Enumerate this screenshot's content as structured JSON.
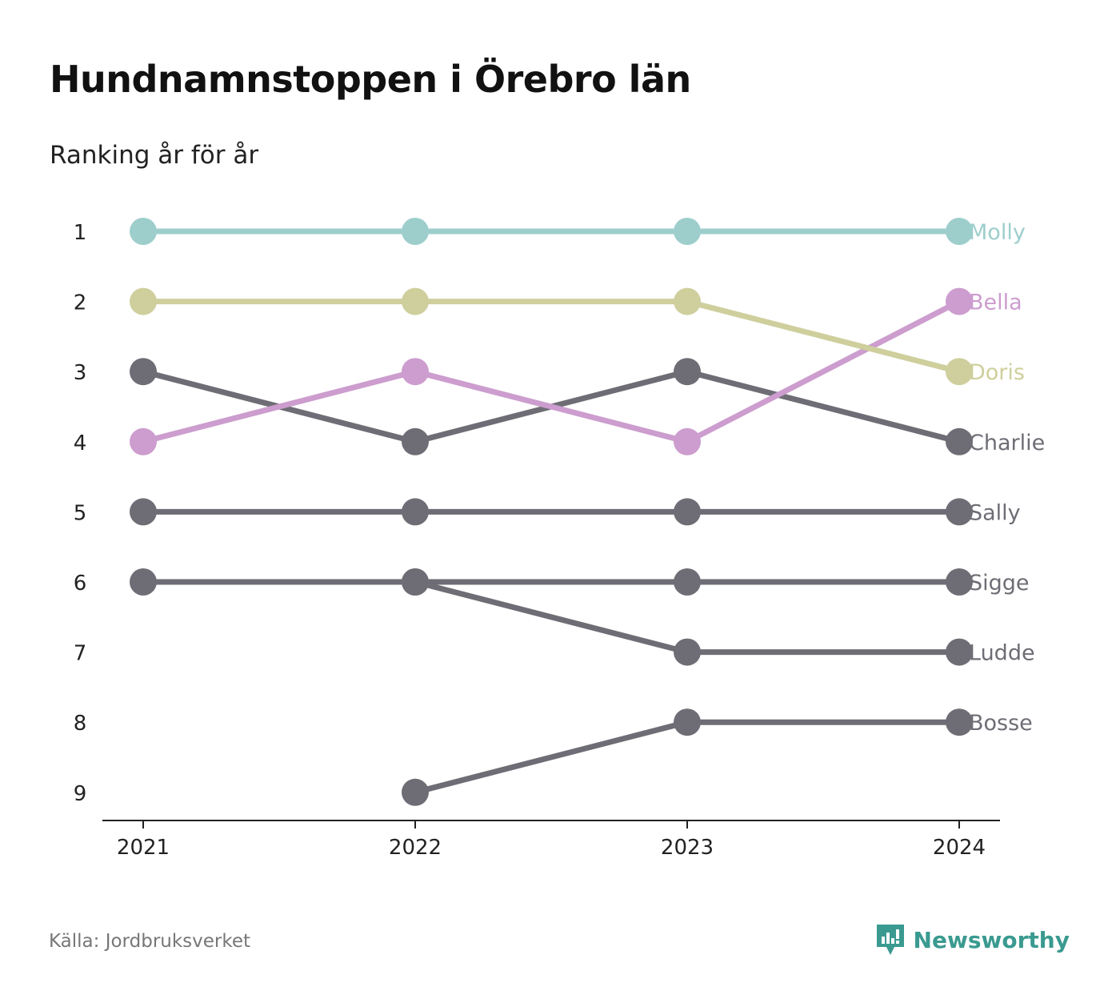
{
  "header": {
    "title": "Hundnamnstoppen i Örebro län",
    "subtitle": "Ranking år för år"
  },
  "footer": {
    "source": "Källa: Jordbruksverket",
    "brand_name": "Newsworthy",
    "brand_icon": "newsworthy-logo-icon"
  },
  "colors": {
    "Molly": "#9dcecc",
    "Doris": "#cecf9d",
    "Bella": "#cc9dce",
    "default": "#6e6d75",
    "brand": "#3a9a90",
    "axis": "#222222",
    "tick_text": "#222222"
  },
  "chart_data": {
    "type": "line",
    "chart_kind": "bump",
    "title": "Hundnamnstoppen i Örebro län",
    "subtitle": "Ranking år för år",
    "x": [
      "2021",
      "2022",
      "2023",
      "2024"
    ],
    "y_ticks": [
      1,
      2,
      3,
      4,
      5,
      6,
      7,
      8,
      9
    ],
    "ylim": [
      1,
      9
    ],
    "y_reversed": true,
    "grid": false,
    "legend": "direct labels at right end",
    "series": [
      {
        "name": "Molly",
        "values": [
          1,
          1,
          1,
          1
        ]
      },
      {
        "name": "Bella",
        "values": [
          4,
          3,
          4,
          2
        ]
      },
      {
        "name": "Doris",
        "values": [
          2,
          2,
          2,
          3
        ]
      },
      {
        "name": "Charlie",
        "values": [
          3,
          4,
          3,
          4
        ]
      },
      {
        "name": "Sally",
        "values": [
          5,
          5,
          5,
          5
        ]
      },
      {
        "name": "Sigge",
        "values": [
          6,
          6,
          6,
          6
        ]
      },
      {
        "name": "Ludde",
        "values": [
          null,
          6,
          7,
          7
        ]
      },
      {
        "name": "Bosse",
        "values": [
          null,
          9,
          8,
          8
        ]
      }
    ]
  }
}
